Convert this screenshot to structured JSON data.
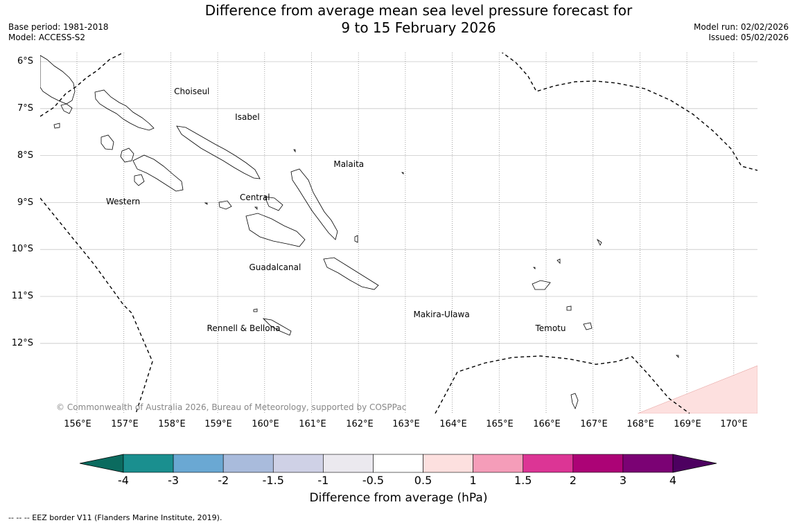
{
  "title": {
    "line1": "Difference from average mean sea level pressure forecast for",
    "line2": "9 to 15 February 2026"
  },
  "meta": {
    "base_period": "Base period: 1981-2018",
    "model": "Model: ACCESS-S2",
    "model_run": "Model run: 02/02/2026",
    "issued": "Issued: 05/02/2026"
  },
  "latitude_labels": [
    "6°S",
    "7°S",
    "8°S",
    "9°S",
    "10°S",
    "11°S",
    "12°S"
  ],
  "longitude_labels": [
    "156°E",
    "157°E",
    "158°E",
    "159°E",
    "160°E",
    "161°E",
    "162°E",
    "163°E",
    "164°E",
    "165°E",
    "166°E",
    "167°E",
    "168°E",
    "169°E",
    "170°E"
  ],
  "regions": [
    {
      "name": "Choiseul",
      "lon": 158.1,
      "lat": -6.65
    },
    {
      "name": "Isabel",
      "lon": 159.4,
      "lat": -7.2
    },
    {
      "name": "Malaita",
      "lon": 161.5,
      "lat": -8.2
    },
    {
      "name": "Western",
      "lon": 156.65,
      "lat": -9.0
    },
    {
      "name": "Central",
      "lon": 159.5,
      "lat": -8.9
    },
    {
      "name": "Guadalcanal",
      "lon": 159.7,
      "lat": -10.4
    },
    {
      "name": "Makira-Ulawa",
      "lon": 163.2,
      "lat": -11.4
    },
    {
      "name": "Rennell & Bellona",
      "lon": 158.8,
      "lat": -11.7
    },
    {
      "name": "Temotu",
      "lon": 165.8,
      "lat": -11.7
    }
  ],
  "copyright": "© Commonwealth of Australia 2026, Bureau of Meteorology, supported by COSPPac",
  "colorbar": {
    "title": "Difference from average (hPa)",
    "ticks": [
      "-4",
      "-3",
      "-2",
      "-1.5",
      "-1",
      "-0.5",
      "0.5",
      "1",
      "1.5",
      "2",
      "3",
      "4"
    ],
    "colors": [
      "#1a8f8f",
      "#6aa8d3",
      "#a9bbdc",
      "#cfd1e6",
      "#ebe9ef",
      "#ffffff",
      "#fde0df",
      "#f59db9",
      "#dc3595",
      "#ac0376",
      "#7b0274"
    ],
    "under_color": "#0b6b5f",
    "over_color": "#4d0060"
  },
  "footnote": "--  --  -- EEZ border V11 (Flanders Marine Institute, 2019).",
  "anomaly_shading": {
    "color": "#fde0df",
    "class": "0.5 to 1"
  }
}
